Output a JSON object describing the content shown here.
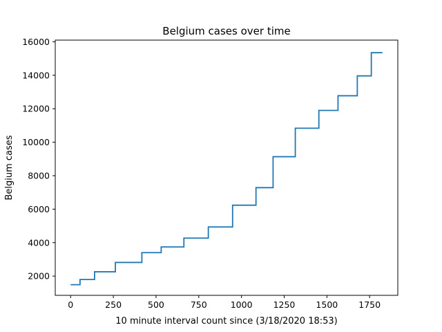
{
  "chart_data": {
    "type": "line",
    "step": true,
    "title": "Belgium cases over time",
    "xlabel": "10 minute interval count since (3/18/2020 18:53)",
    "ylabel": "Belgium cases",
    "xlim": [
      -90,
      1915
    ],
    "ylim": [
      850,
      16100
    ],
    "xticks": [
      0,
      250,
      500,
      750,
      1000,
      1250,
      1500,
      1750
    ],
    "yticks": [
      2000,
      4000,
      6000,
      8000,
      10000,
      12000,
      14000,
      16000
    ],
    "grid": false,
    "color": "#1f77b4",
    "series": [
      {
        "x": [
          0,
          55,
          55,
          140,
          140,
          262,
          262,
          417,
          417,
          530,
          530,
          663,
          663,
          806,
          806,
          948,
          948,
          1085,
          1085,
          1185,
          1185,
          1315,
          1315,
          1453,
          1453,
          1565,
          1565,
          1678,
          1678,
          1760,
          1760,
          1825
        ],
        "y": [
          1486,
          1486,
          1795,
          1795,
          2257,
          2257,
          2815,
          2815,
          3401,
          3401,
          3743,
          3743,
          4269,
          4269,
          4937,
          4937,
          6235,
          6235,
          7284,
          7284,
          9134,
          9134,
          10836,
          10836,
          11899,
          11899,
          12775,
          12775,
          13964,
          13964,
          15348,
          15348
        ]
      }
    ]
  }
}
